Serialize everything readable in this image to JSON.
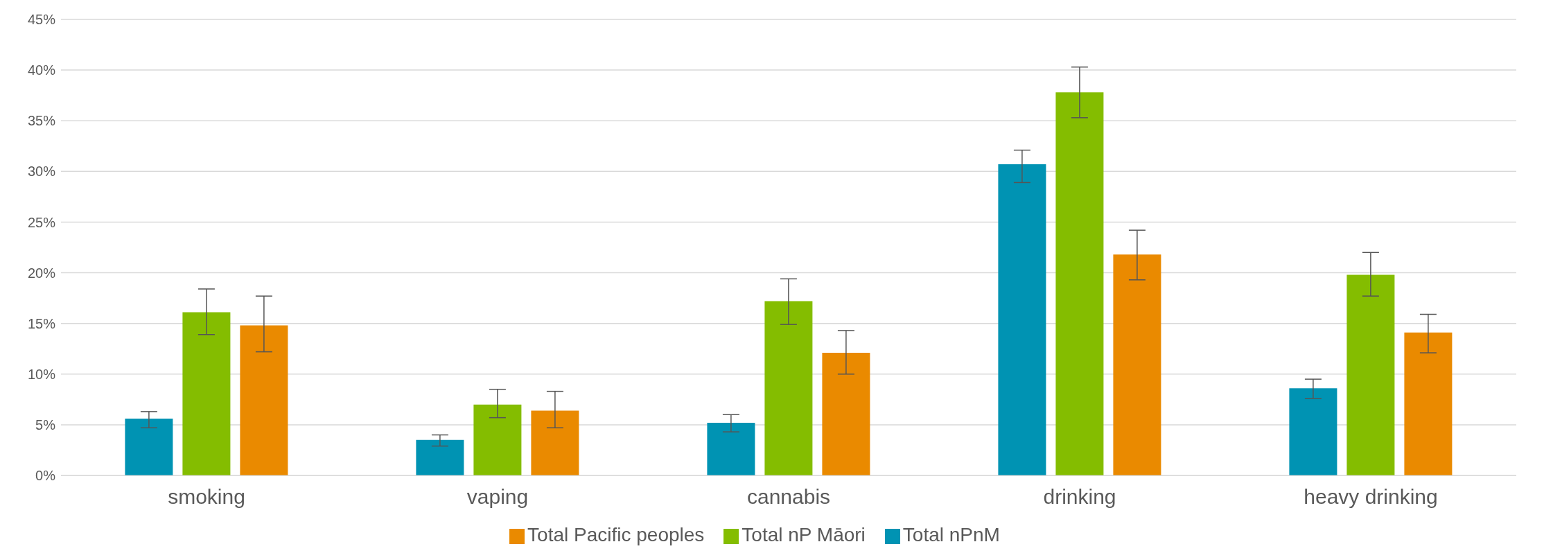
{
  "chart_data": {
    "type": "bar",
    "categories": [
      "smoking",
      "vaping",
      "cannabis",
      "drinking",
      "heavy drinking"
    ],
    "series": [
      {
        "name": "Total nPnM",
        "color": "#0093b3",
        "values": [
          5.6,
          3.5,
          5.2,
          30.7,
          8.6
        ],
        "errors": [
          [
            4.7,
            6.3
          ],
          [
            2.9,
            4.0
          ],
          [
            4.3,
            6.0
          ],
          [
            28.9,
            32.1
          ],
          [
            7.6,
            9.5
          ]
        ]
      },
      {
        "name": "Total nP Māori",
        "color": "#84bd00",
        "values": [
          16.1,
          7.0,
          17.2,
          37.8,
          19.8
        ],
        "errors": [
          [
            13.9,
            18.4
          ],
          [
            5.7,
            8.5
          ],
          [
            14.9,
            19.4
          ],
          [
            35.3,
            40.3
          ],
          [
            17.7,
            22.0
          ]
        ]
      },
      {
        "name": "Total Pacific peoples",
        "color": "#ea8a00",
        "values": [
          14.8,
          6.4,
          12.1,
          21.8,
          14.1
        ],
        "errors": [
          [
            12.2,
            17.7
          ],
          [
            4.7,
            8.3
          ],
          [
            10.0,
            14.3
          ],
          [
            19.3,
            24.2
          ],
          [
            12.1,
            15.9
          ]
        ]
      }
    ],
    "ylim": [
      0,
      45
    ],
    "yticks": [
      {
        "value": 0,
        "label": "0%"
      },
      {
        "value": 5,
        "label": "5%"
      },
      {
        "value": 10,
        "label": "10%"
      },
      {
        "value": 15,
        "label": "15%"
      },
      {
        "value": 20,
        "label": "20%"
      },
      {
        "value": 25,
        "label": "25%"
      },
      {
        "value": 30,
        "label": "30%"
      },
      {
        "value": 35,
        "label": "35%"
      },
      {
        "value": 40,
        "label": "40%"
      },
      {
        "value": 45,
        "label": "45%"
      }
    ],
    "grid": "y",
    "legend": "bottom"
  }
}
